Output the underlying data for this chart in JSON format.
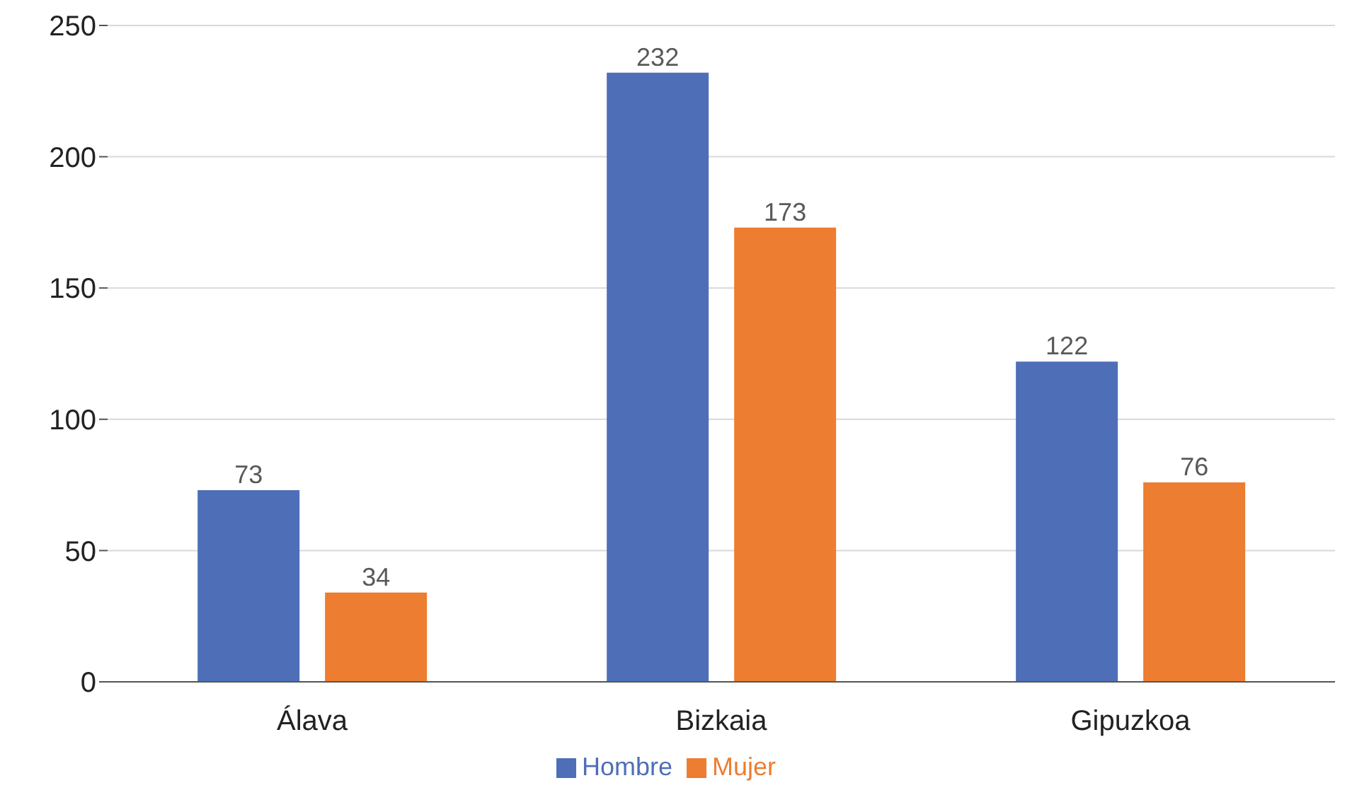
{
  "chart_data": {
    "type": "bar",
    "categories": [
      "Álava",
      "Bizkaia",
      "Gipuzkoa"
    ],
    "series": [
      {
        "name": "Hombre",
        "color": "#4e6fb7",
        "values": [
          73,
          232,
          122
        ]
      },
      {
        "name": "Mujer",
        "color": "#ed7d31",
        "values": [
          34,
          173,
          76
        ]
      }
    ],
    "ylim": [
      0,
      250
    ],
    "yticks": [
      0,
      50,
      100,
      150,
      200,
      250
    ],
    "grid": "y",
    "legend": "bottom",
    "data_labels": true
  }
}
